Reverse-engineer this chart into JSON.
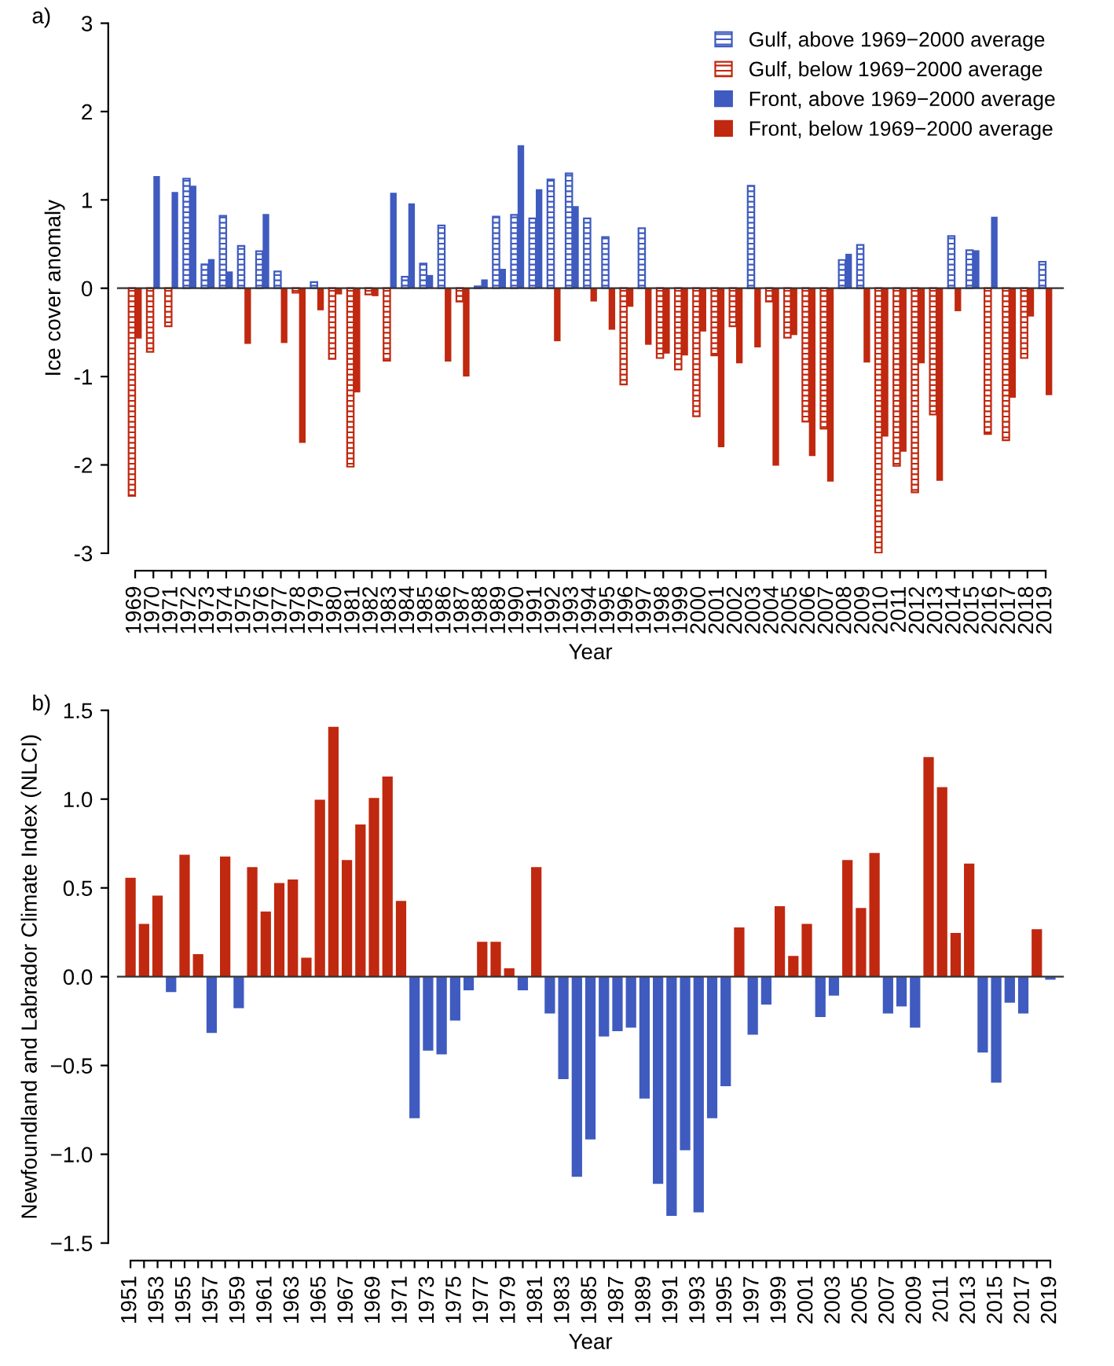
{
  "chart_data": [
    {
      "type": "bar",
      "title": "a)",
      "xlabel": "Year",
      "ylabel": "Ice cover anomaly",
      "categories": [
        "1969",
        "1970",
        "1971",
        "1972",
        "1973",
        "1974",
        "1975",
        "1976",
        "1977",
        "1978",
        "1979",
        "1980",
        "1981",
        "1982",
        "1983",
        "1984",
        "1985",
        "1986",
        "1987",
        "1988",
        "1989",
        "1990",
        "1991",
        "1992",
        "1993",
        "1994",
        "1995",
        "1996",
        "1997",
        "1998",
        "1999",
        "2000",
        "2001",
        "2002",
        "2003",
        "2004",
        "2005",
        "2006",
        "2007",
        "2008",
        "2009",
        "2010",
        "2011",
        "2012",
        "2013",
        "2014",
        "2015",
        "2016",
        "2017",
        "2018",
        "2019"
      ],
      "series": [
        {
          "name": "Gulf, above 1969−2000 average",
          "color": "#3f5bbf",
          "values": [
            null,
            null,
            null,
            1.24,
            0.27,
            0.82,
            0.48,
            0.42,
            0.19,
            null,
            0.07,
            null,
            null,
            null,
            null,
            0.13,
            0.28,
            0.71,
            null,
            0.02,
            0.81,
            0.83,
            0.79,
            1.23,
            1.3,
            0.79,
            0.58,
            null,
            0.68,
            null,
            null,
            null,
            null,
            null,
            1.16,
            null,
            null,
            null,
            null,
            0.32,
            0.49,
            null,
            null,
            null,
            null,
            0.59,
            0.43,
            null,
            null,
            null,
            0.3
          ]
        },
        {
          "name": "Gulf, below 1969−2000 average",
          "color": "#c0280f",
          "values": [
            -2.35,
            -0.72,
            -0.43,
            null,
            null,
            null,
            null,
            null,
            null,
            -0.05,
            null,
            -0.8,
            -2.02,
            -0.07,
            -0.82,
            null,
            null,
            null,
            -0.15,
            null,
            null,
            null,
            null,
            null,
            null,
            null,
            null,
            -1.09,
            null,
            -0.79,
            -0.92,
            -1.45,
            -0.76,
            -0.43,
            null,
            -0.15,
            -0.56,
            -1.51,
            -1.59,
            null,
            null,
            -3.0,
            -2.01,
            -2.31,
            -1.43,
            null,
            null,
            -1.65,
            -1.72,
            -0.79,
            null
          ]
        },
        {
          "name": "Front, above 1969−2000 average",
          "color": "#3f5bbf",
          "values": [
            null,
            1.27,
            1.09,
            1.16,
            0.33,
            0.19,
            null,
            0.84,
            null,
            null,
            null,
            null,
            null,
            null,
            1.08,
            0.96,
            0.15,
            null,
            null,
            0.1,
            0.22,
            1.62,
            1.12,
            null,
            0.93,
            null,
            null,
            null,
            null,
            null,
            null,
            null,
            null,
            null,
            null,
            null,
            null,
            null,
            null,
            0.39,
            null,
            null,
            null,
            null,
            null,
            null,
            0.43,
            0.81,
            null,
            null,
            null
          ]
        },
        {
          "name": "Front, below 1969−2000 average",
          "color": "#c0280f",
          "values": [
            -0.57,
            null,
            null,
            null,
            null,
            null,
            -0.63,
            null,
            -0.62,
            -1.75,
            -0.25,
            -0.07,
            -1.18,
            -0.09,
            null,
            null,
            null,
            -0.83,
            -1.0,
            null,
            null,
            null,
            null,
            -0.6,
            null,
            -0.15,
            -0.47,
            -0.21,
            -0.64,
            -0.74,
            -0.76,
            -0.49,
            -1.8,
            -0.85,
            -0.67,
            -2.01,
            -0.53,
            -1.9,
            -2.19,
            null,
            -0.84,
            -1.68,
            -1.85,
            -0.85,
            -2.18,
            -0.26,
            null,
            null,
            -1.24,
            -0.32,
            -1.21
          ]
        }
      ],
      "ylim": [
        -3,
        3
      ],
      "yticks": [
        -3,
        -2,
        -1,
        0,
        1,
        2,
        3
      ],
      "grid": false,
      "legend": "top right",
      "ref_lines": [
        {
          "axis": "y",
          "value": 0,
          "color": "#333333"
        }
      ]
    },
    {
      "type": "bar",
      "title": "b)",
      "xlabel": "Year",
      "ylabel": "Newfoundland and Labrador Climate Index (NLCI)",
      "categories": [
        "1951",
        null,
        "1953",
        null,
        "1955",
        null,
        "1957",
        null,
        "1959",
        null,
        "1961",
        null,
        "1963",
        null,
        "1965",
        null,
        "1967",
        null,
        "1969",
        null,
        "1971",
        null,
        "1973",
        null,
        "1975",
        null,
        "1977",
        null,
        "1979",
        null,
        "1981",
        null,
        "1983",
        null,
        "1985",
        null,
        "1987",
        null,
        "1989",
        null,
        "1991",
        null,
        "1993",
        null,
        "1995",
        null,
        "1997",
        null,
        "1999",
        null,
        "2001",
        null,
        "2003",
        null,
        "2005",
        null,
        "2007",
        null,
        "2009",
        null,
        "2011",
        null,
        "2013",
        null,
        "2015",
        null,
        "2017",
        null,
        "2019"
      ],
      "values": [
        0.56,
        0.3,
        0.46,
        -0.09,
        0.69,
        0.13,
        -0.32,
        0.68,
        -0.18,
        0.62,
        0.37,
        0.53,
        0.55,
        0.11,
        1.0,
        1.41,
        0.66,
        0.86,
        1.01,
        1.13,
        0.43,
        -0.8,
        -0.42,
        -0.44,
        -0.25,
        -0.08,
        0.2,
        0.2,
        0.05,
        -0.08,
        0.62,
        -0.21,
        -0.58,
        -1.13,
        -0.92,
        -0.34,
        -0.31,
        -0.29,
        -0.69,
        -1.17,
        -1.35,
        -0.98,
        -1.33,
        -0.8,
        -0.62,
        0.28,
        -0.33,
        -0.16,
        0.4,
        0.12,
        0.3,
        -0.23,
        -0.11,
        0.66,
        0.39,
        0.7,
        -0.21,
        -0.17,
        -0.29,
        1.24,
        1.07,
        0.25,
        0.64,
        -0.43,
        -0.6,
        -0.15,
        -0.21,
        0.27,
        -0.02
      ],
      "colors": [
        "#c0280f",
        "#c0280f",
        "#c0280f",
        "#3f5bbf",
        "#c0280f",
        "#c0280f",
        "#3f5bbf",
        "#c0280f",
        "#3f5bbf",
        "#c0280f",
        "#c0280f",
        "#c0280f",
        "#c0280f",
        "#c0280f",
        "#c0280f",
        "#c0280f",
        "#c0280f",
        "#c0280f",
        "#c0280f",
        "#c0280f",
        "#c0280f",
        "#3f5bbf",
        "#3f5bbf",
        "#3f5bbf",
        "#3f5bbf",
        "#3f5bbf",
        "#c0280f",
        "#c0280f",
        "#c0280f",
        "#3f5bbf",
        "#c0280f",
        "#3f5bbf",
        "#3f5bbf",
        "#3f5bbf",
        "#3f5bbf",
        "#3f5bbf",
        "#3f5bbf",
        "#3f5bbf",
        "#3f5bbf",
        "#3f5bbf",
        "#3f5bbf",
        "#3f5bbf",
        "#3f5bbf",
        "#3f5bbf",
        "#3f5bbf",
        "#c0280f",
        "#3f5bbf",
        "#3f5bbf",
        "#c0280f",
        "#c0280f",
        "#c0280f",
        "#3f5bbf",
        "#3f5bbf",
        "#c0280f",
        "#c0280f",
        "#c0280f",
        "#3f5bbf",
        "#3f5bbf",
        "#3f5bbf",
        "#c0280f",
        "#c0280f",
        "#c0280f",
        "#c0280f",
        "#3f5bbf",
        "#3f5bbf",
        "#3f5bbf",
        "#3f5bbf",
        "#c0280f",
        "#3f5bbf"
      ],
      "ylim": [
        -1.5,
        1.5
      ],
      "yticks": [
        {
          "value": -1.5,
          "label": "−1.5"
        },
        {
          "value": -1.0,
          "label": "−1.0"
        },
        {
          "value": -0.5,
          "label": "−0.5"
        },
        {
          "value": 0.0,
          "label": "0.0"
        },
        {
          "value": 0.5,
          "label": "0.5"
        },
        {
          "value": 1.0,
          "label": "1.0"
        },
        {
          "value": 1.5,
          "label": "1.5"
        }
      ],
      "grid": false,
      "legend": false,
      "ref_lines": [
        {
          "axis": "y",
          "value": 0,
          "color": "#333333"
        }
      ]
    }
  ]
}
